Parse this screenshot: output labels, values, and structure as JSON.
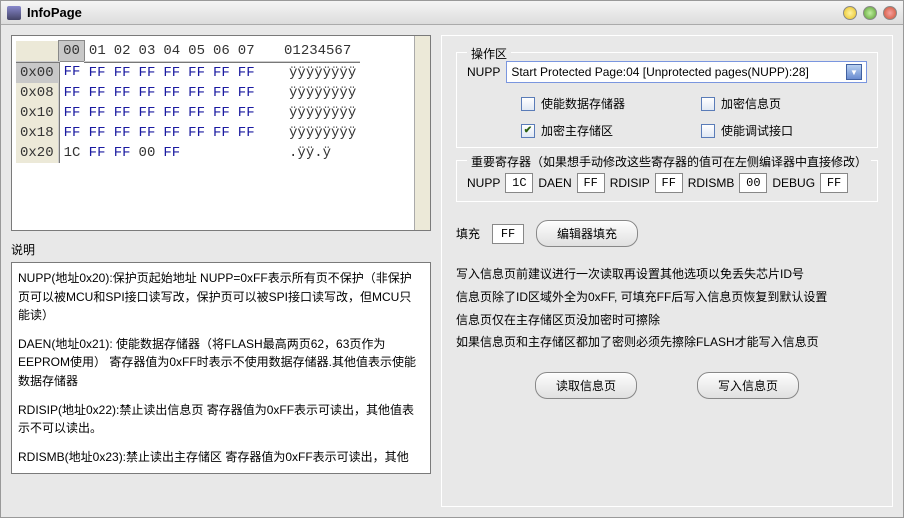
{
  "window": {
    "title": "InfoPage"
  },
  "hex": {
    "col_headers": [
      "",
      "00",
      "01",
      "02",
      "03",
      "04",
      "05",
      "06",
      "07",
      "",
      "01234567"
    ],
    "rows": [
      {
        "addr": "0x00",
        "bytes": [
          "FF",
          "FF",
          "FF",
          "FF",
          "FF",
          "FF",
          "FF",
          "FF"
        ],
        "ascii": "ÿÿÿÿÿÿÿÿ",
        "active": true
      },
      {
        "addr": "0x08",
        "bytes": [
          "FF",
          "FF",
          "FF",
          "FF",
          "FF",
          "FF",
          "FF",
          "FF"
        ],
        "ascii": "ÿÿÿÿÿÿÿÿ"
      },
      {
        "addr": "0x10",
        "bytes": [
          "FF",
          "FF",
          "FF",
          "FF",
          "FF",
          "FF",
          "FF",
          "FF"
        ],
        "ascii": "ÿÿÿÿÿÿÿÿ"
      },
      {
        "addr": "0x18",
        "bytes": [
          "FF",
          "FF",
          "FF",
          "FF",
          "FF",
          "FF",
          "FF",
          "FF"
        ],
        "ascii": "ÿÿÿÿÿÿÿÿ"
      },
      {
        "addr": "0x20",
        "bytes": [
          "1C",
          "FF",
          "FF",
          "00",
          "FF",
          "",
          "",
          ""
        ],
        "ascii": ".ÿÿ.ÿ"
      }
    ]
  },
  "desc": {
    "label": "说明",
    "p1": "NUPP(地址0x20):保护页起始地址 NUPP=0xFF表示所有页不保护（非保护",
    "p1b": "页可以被MCU和SPI接口读写改，保护页可以被SPI接口读写改，但MCU只",
    "p1c": "能读）",
    "p2": "DAEN(地址0x21): 使能数据存储器（将FLASH最高两页62，63页作为EEPROM使用） 寄存器值为0xFF时表示不使用数据存储器.其他值表示使能数据存储器",
    "p3": "RDISIP(地址0x22):禁止读出信息页 寄存器值为0xFF表示可读出，其他值表",
    "p3b": "示不可以读出。",
    "p4": "RDISMB(地址0x23):禁止读出主存储区 寄存器值为0xFF表示可读出，其他"
  },
  "op": {
    "legend": "操作区",
    "nupp_label": "NUPP",
    "dropdown_text": "Start Protected Page:04    [Unprotected pages(NUPP):28]",
    "cb1": "使能数据存储器",
    "cb2": "加密信息页",
    "cb3": "加密主存储区",
    "cb4": "使能调试接口"
  },
  "reg": {
    "legend": "重要寄存器（如果想手动修改这些寄存器的值可在左侧编译器中直接修改）",
    "l1": "NUPP",
    "v1": "1C",
    "l2": "DAEN",
    "v2": "FF",
    "l3": "RDISIP",
    "v3": "FF",
    "l4": "RDISMB",
    "v4": "00",
    "l5": "DEBUG",
    "v5": "FF"
  },
  "fill": {
    "label": "填充",
    "value": "FF",
    "btn": "编辑器填充"
  },
  "notes": {
    "n1": "写入信息页前建议进行一次读取再设置其他选项以免丢失芯片ID号",
    "n2": "信息页除了ID区域外全为0xFF, 可填充FF后写入信息页恢复到默认设置",
    "n3": "信息页仅在主存储区页没加密时可擦除",
    "n4": "如果信息页和主存储区都加了密则必须先擦除FLASH才能写入信息页"
  },
  "actions": {
    "read": "读取信息页",
    "write": "写入信息页"
  }
}
